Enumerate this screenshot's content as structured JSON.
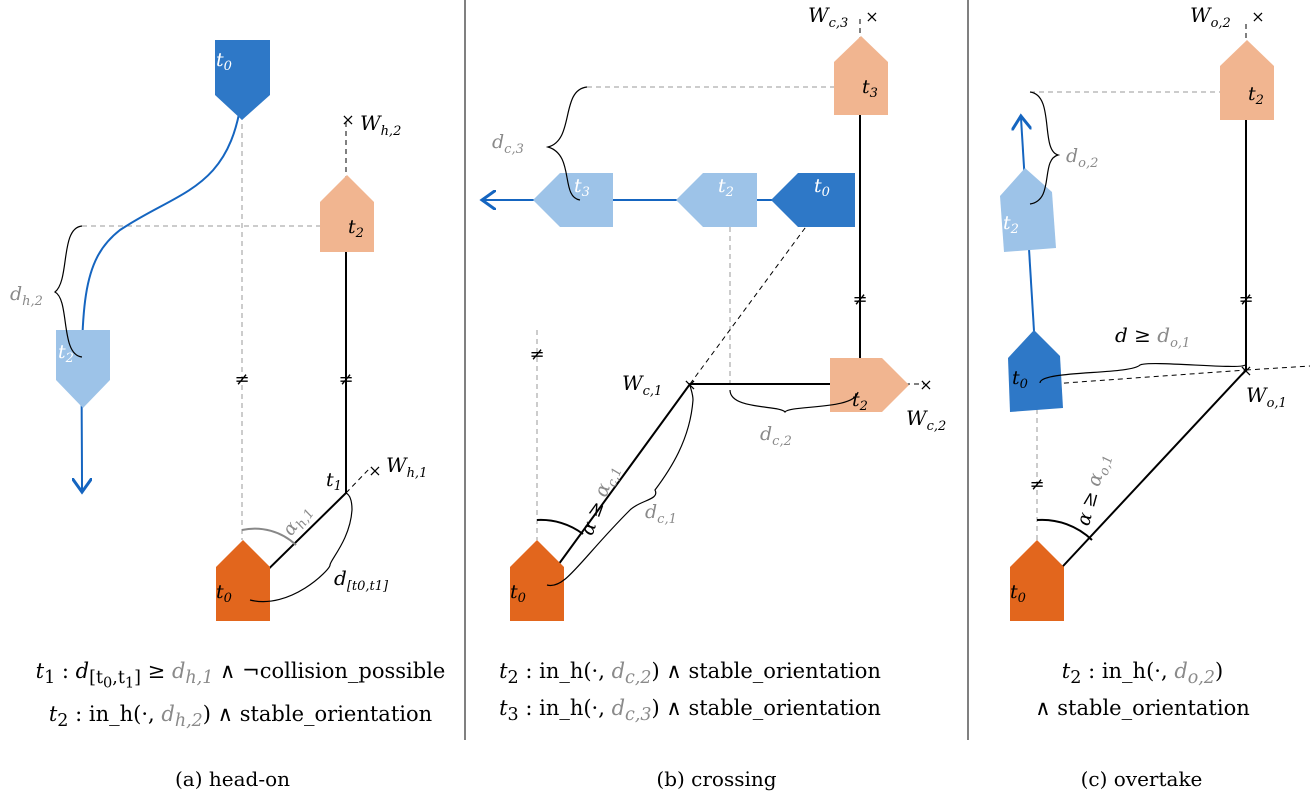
{
  "colors": {
    "own_ship": "#e2661d",
    "own_ship_future": "#f1b590",
    "target_ship": "#2e78c7",
    "target_ship_future": "#9dc3e8",
    "target_path": "#1565c0",
    "gray_label": "#8a8a8a"
  },
  "panels": [
    {
      "caption": "(a) head-on",
      "conditions": [
        {
          "time": "t",
          "time_sub": "1",
          "text_pre": ": ",
          "expr": "d[t0,t1] ≥ ",
          "gray": "d_h,1",
          "text_post": " ∧ ¬collision_possible"
        },
        {
          "time": "t",
          "time_sub": "2",
          "text_pre": ": in_h(·, ",
          "gray": "d_h,2",
          "text_post": ") ∧ stable_orientation"
        }
      ],
      "labels": {
        "waypoint_1": "W_h,1",
        "waypoint_2": "W_h,2",
        "angle": "α_h,1",
        "dist_1": "d_[t0,t1]",
        "dist_2": "d_h,2",
        "t0": "t0",
        "t1": "t1",
        "t2": "t2"
      }
    },
    {
      "caption": "(b) crossing",
      "conditions": [
        {
          "time": "t",
          "time_sub": "2",
          "text_pre": ": in_h(·, ",
          "gray": "d_c,2",
          "text_post": ") ∧ stable_orientation"
        },
        {
          "time": "t",
          "time_sub": "3",
          "text_pre": ": in_h(·, ",
          "gray": "d_c,3",
          "text_post": ") ∧ stable_orientation"
        }
      ],
      "labels": {
        "waypoint_1": "W_c,1",
        "waypoint_2": "W_c,2",
        "waypoint_3": "W_c,3",
        "angle": "α ≥ α_c,1",
        "dist_1": "d_c,1",
        "dist_2": "d_c,2",
        "dist_3": "d_c,3",
        "t0": "t0",
        "t2": "t2",
        "t3": "t3"
      }
    },
    {
      "caption": "(c) overtake",
      "conditions": [
        {
          "time": "t",
          "time_sub": "2",
          "text_pre": ": in_h(·, ",
          "gray": "d_o,2",
          "text_post": ")"
        },
        {
          "text_post": "∧ stable_orientation"
        }
      ],
      "labels": {
        "waypoint_1": "W_o,1",
        "waypoint_2": "W_o,2",
        "angle": "α ≥ α_o,1",
        "dist_1": "d ≥ d_o,1",
        "dist_2": "d_o,2",
        "t0": "t0",
        "t2": "t2"
      }
    }
  ]
}
